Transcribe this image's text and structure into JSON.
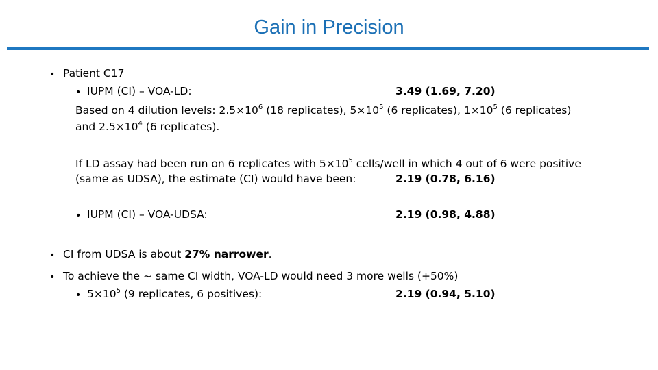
{
  "title": "Gain in Precision",
  "slide": {
    "patient": "Patient C17",
    "iupm_ld_label": "IUPM (CI) – VOA-LD:",
    "iupm_ld_value": "3.49 (1.69, 7.20)",
    "dilution_line1": {
      "prefix": "Based on 4 dilution levels: ",
      "m1": "2.5×10",
      "e1": "6",
      "r1": " (18 replicates), ",
      "m2": "5×10",
      "e2": "5",
      "r2": " (6 replicates), ",
      "m3": "1×10",
      "e3": "5",
      "r3": " (6 replicates)"
    },
    "dilution_line2": {
      "prefix": "and ",
      "m4": "2.5×10",
      "e4": "4",
      "r4": " (6 replicates)."
    },
    "hypo_line1": {
      "prefix": "If LD assay had been run on 6 replicates with ",
      "m": "5×10",
      "e": "5",
      "suffix": " cells/well in which 4 out of 6 were positive"
    },
    "hypo_line2": "(same as UDSA), the estimate (CI) would have been:",
    "hypo_value": "2.19 (0.78, 6.16)",
    "iupm_udsa_label": "IUPM (CI) – VOA-UDSA:",
    "iupm_udsa_value": "2.19 (0.98, 4.88)",
    "ci_prefix": "CI from UDSA is about ",
    "ci_bold": "27% narrower",
    "ci_suffix": ".",
    "achieve": "To achieve the ~ same CI width, VOA-LD would need 3 more wells (+50%)",
    "final_label": {
      "m": "5×10",
      "e": "5",
      "suffix": " (9 replicates, 6 positives):"
    },
    "final_value": "2.19 (0.94, 5.10)",
    "bullet_glyph": "•"
  }
}
